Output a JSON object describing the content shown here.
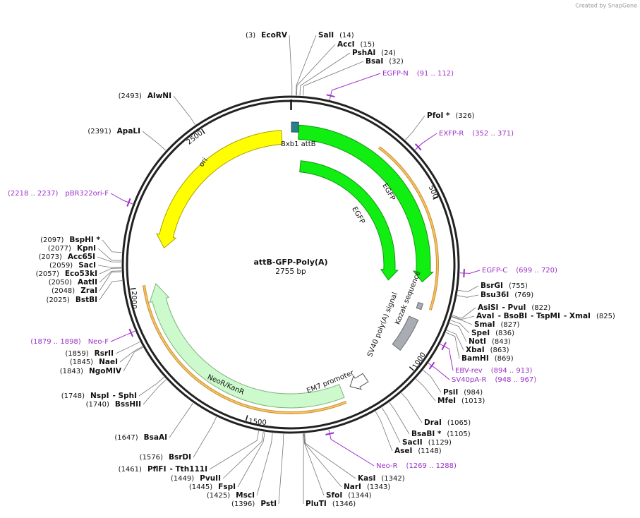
{
  "header": {
    "credit": "Created by SnapGene"
  },
  "map": {
    "name": "attB-GFP-Poly(A)",
    "length": "2755 bp",
    "ruler": [
      500,
      1000,
      1500,
      2000,
      2500
    ],
    "features": [
      "Bxb1 attB",
      "EGFP",
      "EGFP",
      "ori",
      "NeoR/KanR",
      "EM7 promoter",
      "SV40 poly(A) signal",
      "Kozak sequence"
    ],
    "sites": [
      {
        "names": [
          "EcoRV"
        ],
        "pos": "(3)"
      },
      {
        "names": [
          "SalI"
        ],
        "pos": "(14)"
      },
      {
        "names": [
          "AccI"
        ],
        "pos": "(15)"
      },
      {
        "names": [
          "PshAI"
        ],
        "pos": "(24)"
      },
      {
        "names": [
          "BsaI"
        ],
        "pos": "(32)"
      },
      {
        "names": [
          "PfoI *"
        ],
        "pos": "(326)"
      },
      {
        "names": [
          "BsrGI"
        ],
        "pos": "(755)"
      },
      {
        "names": [
          "Bsu36I"
        ],
        "pos": "(769)"
      },
      {
        "names": [
          "AsiSI",
          "- PvuI"
        ],
        "pos": "(822)"
      },
      {
        "names": [
          "AvaI",
          "- BsoBI",
          "- TspMI",
          "- XmaI"
        ],
        "pos": "(825)"
      },
      {
        "names": [
          "SmaI"
        ],
        "pos": "(827)"
      },
      {
        "names": [
          "SpeI"
        ],
        "pos": "(836)"
      },
      {
        "names": [
          "NotI"
        ],
        "pos": "(843)"
      },
      {
        "names": [
          "XbaI"
        ],
        "pos": "(863)"
      },
      {
        "names": [
          "BamHI"
        ],
        "pos": "(869)"
      },
      {
        "names": [
          "PsiI"
        ],
        "pos": "(984)"
      },
      {
        "names": [
          "MfeI"
        ],
        "pos": "(1013)"
      },
      {
        "names": [
          "DraI"
        ],
        "pos": "(1065)"
      },
      {
        "names": [
          "BsaBI *"
        ],
        "pos": "(1105)"
      },
      {
        "names": [
          "SacII"
        ],
        "pos": "(1129)"
      },
      {
        "names": [
          "AseI"
        ],
        "pos": "(1148)"
      },
      {
        "names": [
          "KasI"
        ],
        "pos": "(1342)"
      },
      {
        "names": [
          "NarI"
        ],
        "pos": "(1343)"
      },
      {
        "names": [
          "SfoI"
        ],
        "pos": "(1344)"
      },
      {
        "names": [
          "PluTI"
        ],
        "pos": "(1346)"
      },
      {
        "names": [
          "PstI"
        ],
        "pos": "(1396)"
      },
      {
        "names": [
          "MscI"
        ],
        "pos": "(1425)"
      },
      {
        "names": [
          "FspI"
        ],
        "pos": "(1445)"
      },
      {
        "names": [
          "PvuII"
        ],
        "pos": "(1449)"
      },
      {
        "names": [
          "PflFI",
          "- Tth111I"
        ],
        "pos": "(1461)"
      },
      {
        "names": [
          "BsrDI"
        ],
        "pos": "(1576)"
      },
      {
        "names": [
          "BsaAI"
        ],
        "pos": "(1647)"
      },
      {
        "names": [
          "BssHII"
        ],
        "pos": "(1740)"
      },
      {
        "names": [
          "NspI",
          "- SphI"
        ],
        "pos": "(1748)"
      },
      {
        "names": [
          "NgoMIV"
        ],
        "pos": "(1843)"
      },
      {
        "names": [
          "NaeI"
        ],
        "pos": "(1845)"
      },
      {
        "names": [
          "RsrII"
        ],
        "pos": "(1859)"
      },
      {
        "names": [
          "BstBI"
        ],
        "pos": "(2025)"
      },
      {
        "names": [
          "ZraI"
        ],
        "pos": "(2048)"
      },
      {
        "names": [
          "AatII"
        ],
        "pos": "(2050)"
      },
      {
        "names": [
          "Eco53kI"
        ],
        "pos": "(2057)"
      },
      {
        "names": [
          "SacI"
        ],
        "pos": "(2059)"
      },
      {
        "names": [
          "Acc65I"
        ],
        "pos": "(2073)"
      },
      {
        "names": [
          "KpnI"
        ],
        "pos": "(2077)"
      },
      {
        "names": [
          "BspHI *"
        ],
        "pos": "(2097)"
      },
      {
        "names": [
          "ApaLI"
        ],
        "pos": "(2391)"
      },
      {
        "names": [
          "AlwNI"
        ],
        "pos": "(2493)"
      }
    ],
    "primers": [
      {
        "name": "EGFP-N",
        "range": "(91 .. 112)"
      },
      {
        "name": "EXFP-R",
        "range": "(352 .. 371)"
      },
      {
        "name": "EGFP-C",
        "range": "(699 .. 720)"
      },
      {
        "name": "EBV-rev",
        "range": "(894 .. 913)"
      },
      {
        "name": "SV40pA-R",
        "range": "(948 .. 967)"
      },
      {
        "name": "Neo-R",
        "range": "(1269 .. 1288)"
      },
      {
        "name": "Neo-F",
        "range": "(1879 .. 1898)"
      },
      {
        "name": "pBR322ori-F",
        "range": "(2218 .. 2237)"
      }
    ]
  }
}
